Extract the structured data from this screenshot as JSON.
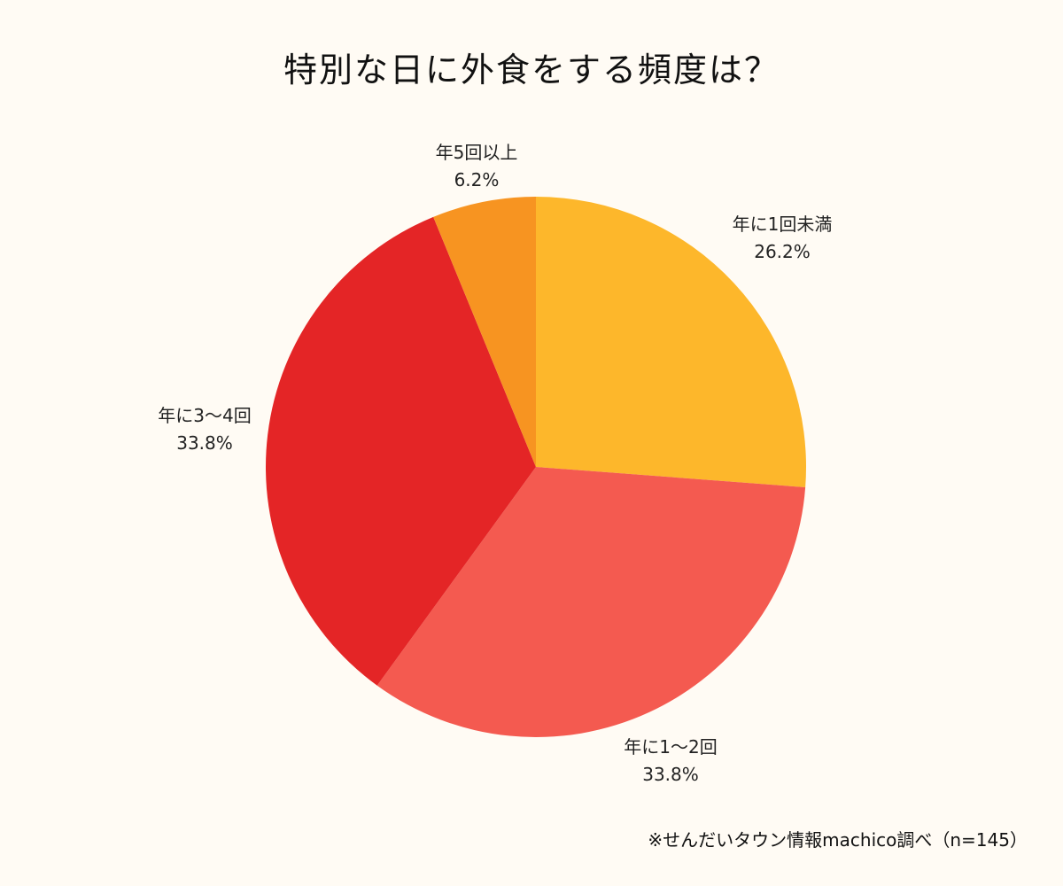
{
  "title": "特別な日に外食をする頻度は？",
  "footnote": "※せんだいタウン情報machico調べ（n=145）",
  "chart_data": {
    "type": "pie",
    "title": "特別な日に外食をする頻度は？",
    "categories": [
      "年に1回未満",
      "年に1〜2回",
      "年に3〜4回",
      "年5回以上"
    ],
    "values": [
      26.2,
      33.8,
      33.8,
      6.2
    ],
    "value_labels": [
      "26.2%",
      "33.8%",
      "33.8%",
      "6.2%"
    ],
    "colors": [
      "#FDB72B",
      "#F45A50",
      "#E42526",
      "#F79421"
    ],
    "start_angle": "12 o'clock",
    "direction": "clockwise",
    "legend": "none (labels outside slices)",
    "annotation": "※せんだいタウン情報machico調べ（n=145）"
  },
  "labels": [
    {
      "name": "年に1回未満",
      "pct": "26.2%"
    },
    {
      "name": "年に1〜2回",
      "pct": "33.8%"
    },
    {
      "name": "年に3〜4回",
      "pct": "33.8%"
    },
    {
      "name": "年5回以上",
      "pct": "6.2%"
    }
  ]
}
